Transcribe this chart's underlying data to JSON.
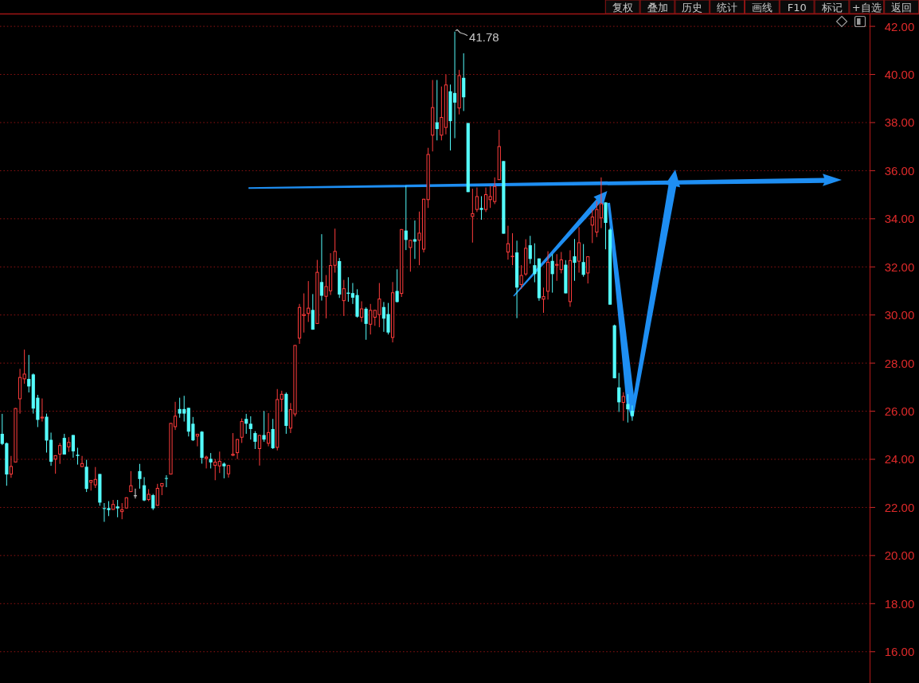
{
  "chart_data": {
    "type": "candlestick",
    "categories": [
      null,
      null,
      null,
      null,
      null,
      null,
      null,
      null,
      null,
      null,
      null,
      null,
      null,
      null,
      null,
      null,
      null,
      null,
      null,
      null,
      null,
      null,
      null,
      null,
      null,
      null,
      null,
      null,
      null,
      null,
      null,
      null,
      null,
      null,
      null,
      null,
      null,
      null,
      null,
      null,
      null,
      null,
      null,
      null,
      null,
      null,
      null,
      null,
      null,
      null,
      null,
      null,
      null,
      null,
      null,
      null,
      null,
      null,
      null,
      null,
      null,
      null,
      null,
      null,
      null,
      null,
      null,
      null,
      null,
      null,
      null,
      null,
      null,
      null,
      null,
      null,
      null,
      null,
      null,
      null,
      null,
      null,
      null,
      null,
      null,
      null,
      null,
      null,
      null,
      null,
      null,
      null,
      null,
      null,
      null,
      null,
      null,
      null,
      null,
      null,
      null,
      null,
      null,
      null,
      null,
      null,
      null,
      null,
      null,
      null,
      null,
      null,
      null,
      null,
      null,
      null,
      null,
      null,
      null,
      null,
      null,
      null,
      null,
      null,
      null,
      null,
      null,
      null,
      null,
      null,
      null,
      null,
      null,
      null,
      null,
      null,
      null,
      null,
      null,
      null,
      null,
      null,
      null,
      null,
      null,
      null,
      null,
      null,
      null,
      null,
      null,
      null,
      null,
      null,
      null,
      null,
      null,
      null,
      null,
      null,
      null,
      null,
      null,
      null,
      null,
      null,
      null,
      null,
      null,
      null,
      null,
      null,
      null,
      null,
      null,
      null,
      null,
      null,
      null,
      null,
      null,
      null,
      null,
      null,
      null,
      null,
      null,
      null,
      null,
      null,
      null,
      null,
      null,
      null,
      null,
      null
    ],
    "ohlc": [
      [
        25.06,
        25.89,
        24.59,
        24.64
      ],
      [
        24.67,
        24.7,
        22.9,
        23.37
      ],
      [
        23.37,
        24.14,
        23.23,
        23.72
      ],
      [
        23.87,
        26.13,
        23.87,
        26.13
      ],
      [
        26.5,
        27.76,
        25.9,
        27.42
      ],
      [
        27.33,
        28.56,
        27.14,
        27.56
      ],
      [
        27.34,
        28.34,
        26.78,
        27.03
      ],
      [
        27.53,
        27.57,
        25.9,
        26.11
      ],
      [
        26.56,
        26.68,
        25.34,
        25.64
      ],
      [
        25.7,
        26.53,
        25.57,
        25.77
      ],
      [
        25.77,
        25.9,
        24.28,
        24.78
      ],
      [
        24.81,
        25.11,
        23.73,
        23.9
      ],
      [
        23.99,
        24.17,
        23.4,
        24.17
      ],
      [
        24.2,
        24.68,
        23.81,
        24.59
      ],
      [
        24.89,
        25.06,
        24.2,
        24.2
      ],
      [
        24.5,
        24.92,
        24.31,
        24.72
      ],
      [
        25.01,
        25.01,
        24.07,
        24.33
      ],
      [
        24.19,
        24.48,
        23.78,
        24.14
      ],
      [
        23.68,
        24.14,
        23.68,
        23.84
      ],
      [
        23.69,
        23.98,
        22.64,
        22.77
      ],
      [
        23.03,
        23.14,
        22.7,
        23.14
      ],
      [
        22.92,
        23.68,
        22.81,
        23.18
      ],
      [
        23.39,
        23.39,
        22.07,
        22.2
      ],
      [
        21.97,
        22.18,
        21.4,
        21.94
      ],
      [
        21.97,
        22.26,
        21.64,
        21.89
      ],
      [
        21.9,
        22.31,
        21.9,
        22.14
      ],
      [
        22.04,
        22.31,
        21.59,
        21.96
      ],
      [
        21.81,
        22.18,
        21.51,
        21.92
      ],
      [
        21.96,
        22.42,
        21.96,
        22.42
      ],
      [
        22.64,
        23.51,
        22.64,
        22.92
      ],
      [
        22.5,
        22.78,
        22.37,
        22.5
      ],
      [
        23.51,
        23.81,
        22.78,
        23.18
      ],
      [
        22.92,
        23.26,
        22.26,
        22.29
      ],
      [
        22.31,
        22.76,
        22.26,
        22.56
      ],
      [
        22.51,
        22.56,
        21.89,
        21.96
      ],
      [
        22.07,
        22.98,
        22.07,
        22.81
      ],
      [
        22.87,
        23.01,
        22.51,
        23.01
      ],
      [
        23.22,
        23.34,
        22.84,
        23.19
      ],
      [
        23.37,
        25.51,
        23.37,
        25.51
      ],
      [
        25.34,
        26.39,
        25.22,
        25.81
      ],
      [
        26.09,
        26.56,
        25.73,
        25.9
      ],
      [
        26.09,
        26.64,
        25.57,
        25.9
      ],
      [
        26.14,
        26.14,
        24.95,
        25.15
      ],
      [
        25.48,
        25.76,
        24.76,
        24.79
      ],
      [
        24.95,
        25.06,
        24.54,
        25.06
      ],
      [
        25.15,
        25.17,
        23.82,
        24.06
      ],
      [
        24.02,
        24.15,
        23.62,
        24.11
      ],
      [
        24.02,
        24.26,
        23.62,
        23.87
      ],
      [
        23.73,
        24.01,
        23.13,
        23.9
      ],
      [
        23.71,
        24.32,
        23.43,
        23.93
      ],
      [
        23.82,
        23.87,
        23.21,
        23.71
      ],
      [
        23.38,
        23.76,
        23.24,
        23.76
      ],
      [
        24.15,
        25.09,
        24.13,
        24.23
      ],
      [
        24.26,
        24.84,
        24.01,
        24.84
      ],
      [
        24.9,
        25.7,
        24.68,
        25.59
      ],
      [
        25.68,
        25.89,
        25.06,
        25.48
      ],
      [
        25.48,
        25.79,
        24.82,
        25.26
      ],
      [
        25.09,
        25.17,
        24.43,
        24.73
      ],
      [
        24.43,
        25.01,
        23.74,
        25.01
      ],
      [
        25.01,
        26.01,
        24.73,
        24.82
      ],
      [
        24.65,
        25.92,
        24.54,
        25.13
      ],
      [
        25.26,
        25.68,
        24.43,
        24.46
      ],
      [
        24.48,
        26.92,
        24.37,
        26.5
      ],
      [
        26.48,
        26.85,
        25.98,
        26.72
      ],
      [
        26.72,
        26.78,
        25.06,
        25.39
      ],
      [
        25.28,
        26.34,
        25.09,
        26.08
      ],
      [
        25.87,
        28.75,
        25.78,
        28.75
      ],
      [
        29.02,
        30.46,
        28.8,
        30.33
      ],
      [
        29.96,
        30.9,
        29.27,
        30.04
      ],
      [
        30.05,
        31.41,
        29.71,
        30.3
      ],
      [
        30.21,
        30.87,
        29.39,
        29.39
      ],
      [
        29.63,
        32.29,
        29.63,
        31.79
      ],
      [
        31.37,
        33.36,
        30.6,
        30.8
      ],
      [
        30.76,
        31.66,
        29.86,
        31.2
      ],
      [
        30.99,
        32.57,
        30.83,
        32.07
      ],
      [
        32.05,
        33.59,
        31.76,
        32.66
      ],
      [
        32.24,
        32.37,
        30.71,
        30.85
      ],
      [
        30.58,
        31.46,
        29.96,
        31.11
      ],
      [
        30.93,
        31.57,
        30.55,
        30.88
      ],
      [
        30.91,
        31.33,
        30.46,
        30.72
      ],
      [
        30.83,
        31.07,
        29.89,
        29.93
      ],
      [
        29.89,
        30.57,
        29.71,
        30.27
      ],
      [
        30.26,
        30.32,
        28.97,
        29.63
      ],
      [
        29.6,
        30.46,
        29.19,
        30.21
      ],
      [
        29.89,
        30.21,
        29.55,
        30.21
      ],
      [
        30.0,
        31.33,
        29.49,
        30.68
      ],
      [
        30.33,
        30.54,
        29.3,
        29.85
      ],
      [
        30.04,
        30.5,
        29.19,
        29.27
      ],
      [
        29.05,
        31.37,
        28.86,
        30.94
      ],
      [
        31.0,
        31.9,
        30.52,
        30.54
      ],
      [
        30.88,
        33.57,
        30.75,
        33.57
      ],
      [
        33.51,
        35.36,
        32.7,
        33.12
      ],
      [
        32.79,
        33.12,
        31.8,
        33.12
      ],
      [
        33.15,
        33.93,
        32.33,
        33.05
      ],
      [
        33.09,
        34.3,
        32.07,
        33.42
      ],
      [
        32.72,
        34.83,
        32.6,
        34.83
      ],
      [
        34.78,
        36.95,
        34.45,
        36.69
      ],
      [
        37.46,
        39.77,
        36.8,
        38.64
      ],
      [
        38.01,
        39.77,
        37.26,
        37.73
      ],
      [
        37.46,
        39.5,
        37.26,
        38.23
      ],
      [
        37.78,
        40.0,
        37.51,
        39.58
      ],
      [
        39.3,
        39.58,
        36.84,
        38.06
      ],
      [
        39.23,
        41.78,
        37.35,
        38.83
      ],
      [
        38.59,
        40.19,
        38.34,
        39.97
      ],
      [
        39.86,
        40.88,
        38.48,
        39.05
      ],
      [
        37.98,
        37.98,
        35.11,
        35.11
      ],
      [
        34.08,
        35.25,
        33.01,
        34.23
      ],
      [
        34.37,
        35.3,
        34.28,
        34.94
      ],
      [
        34.45,
        34.94,
        33.96,
        34.37
      ],
      [
        34.37,
        35.3,
        34.28,
        35.02
      ],
      [
        34.78,
        35.36,
        34.45,
        34.94
      ],
      [
        34.7,
        35.72,
        34.61,
        35.36
      ],
      [
        35.61,
        37.7,
        35.61,
        37.02
      ],
      [
        36.4,
        36.4,
        33.38,
        33.38
      ],
      [
        32.6,
        33.71,
        32.3,
        32.98
      ],
      [
        32.41,
        33.4,
        32.07,
        32.46
      ],
      [
        32.6,
        33.09,
        29.87,
        31.14
      ],
      [
        31.25,
        32.07,
        31.08,
        31.66
      ],
      [
        31.69,
        33.15,
        31.63,
        32.79
      ],
      [
        32.9,
        33.29,
        32.13,
        32.33
      ],
      [
        32.07,
        32.98,
        31.36,
        31.7
      ],
      [
        32.35,
        32.35,
        30.59,
        30.7
      ],
      [
        30.64,
        31.14,
        30.09,
        30.78
      ],
      [
        30.97,
        32.65,
        30.64,
        32.21
      ],
      [
        32.25,
        32.53,
        30.93,
        31.7
      ],
      [
        32.05,
        32.53,
        31.42,
        32.12
      ],
      [
        31.87,
        32.62,
        31.73,
        32.31
      ],
      [
        32.09,
        32.28,
        30.9,
        30.9
      ],
      [
        30.54,
        32.69,
        30.34,
        32.28
      ],
      [
        32.44,
        33.16,
        31.42,
        32.17
      ],
      [
        32.22,
        33.65,
        31.76,
        33.02
      ],
      [
        32.2,
        32.95,
        31.59,
        31.67
      ],
      [
        31.73,
        32.44,
        31.31,
        32.44
      ],
      [
        33.72,
        34.4,
        32.99,
        34.09
      ],
      [
        33.43,
        34.73,
        33.24,
        34.4
      ],
      [
        34.02,
        35.72,
        33.61,
        34.64
      ],
      [
        34.68,
        34.68,
        32.73,
        33.83
      ],
      [
        33.55,
        33.61,
        30.43,
        30.43
      ],
      [
        29.57,
        29.6,
        27.37,
        27.37
      ],
      [
        26.99,
        27.59,
        25.97,
        26.37
      ],
      [
        26.35,
        26.79,
        25.6,
        26.63
      ],
      [
        26.3,
        26.71,
        25.53,
        26.08
      ],
      [
        26.02,
        26.24,
        25.6,
        25.8
      ],
      null,
      null,
      null,
      null,
      null,
      null,
      null,
      null,
      null,
      null,
      null,
      null,
      null,
      null,
      null,
      null,
      null,
      null,
      null,
      null,
      null,
      null,
      null,
      null,
      null,
      null,
      null,
      null,
      null,
      null,
      null,
      null,
      null,
      null,
      null,
      null,
      null,
      null,
      null,
      null,
      null,
      null,
      null,
      null,
      null,
      null,
      null,
      null,
      null,
      null,
      null,
      null,
      null
    ],
    "colors": [
      "#54fcfc",
      "#54fcfc",
      "#ff3c3c",
      "#ff3c3c",
      "#ff3c3c",
      "#ff3c3c",
      "#54fcfc",
      "#54fcfc",
      "#54fcfc",
      "#ff3c3c",
      "#54fcfc",
      "#54fcfc",
      "#ff3c3c",
      "#ff3c3c",
      "#54fcfc",
      "#ff3c3c",
      "#54fcfc",
      "#54fcfc",
      "#ff3c3c",
      "#54fcfc",
      "#ff3c3c",
      "#ff3c3c",
      "#54fcfc",
      "#54fcfc",
      "#54fcfc",
      "#ff3c3c",
      "#54fcfc",
      "#ff3c3c",
      "#ff3c3c",
      "#ff3c3c",
      "#e8e8e8",
      "#54fcfc",
      "#54fcfc",
      "#ff3c3c",
      "#54fcfc",
      "#ff3c3c",
      "#ff3c3c",
      "#54fcfc",
      "#ff3c3c",
      "#ff3c3c",
      "#54fcfc",
      "#54fcfc",
      "#54fcfc",
      "#54fcfc",
      "#ff3c3c",
      "#54fcfc",
      "#ff3c3c",
      "#54fcfc",
      "#ff3c3c",
      "#ff3c3c",
      "#54fcfc",
      "#ff3c3c",
      "#ff3c3c",
      "#ff3c3c",
      "#ff3c3c",
      "#54fcfc",
      "#54fcfc",
      "#54fcfc",
      "#ff3c3c",
      "#54fcfc",
      "#ff3c3c",
      "#54fcfc",
      "#ff3c3c",
      "#ff3c3c",
      "#54fcfc",
      "#ff3c3c",
      "#ff3c3c",
      "#ff3c3c",
      "#ff3c3c",
      "#ff3c3c",
      "#54fcfc",
      "#ff3c3c",
      "#54fcfc",
      "#ff3c3c",
      "#ff3c3c",
      "#ff3c3c",
      "#54fcfc",
      "#ff3c3c",
      "#54fcfc",
      "#54fcfc",
      "#54fcfc",
      "#ff3c3c",
      "#54fcfc",
      "#ff3c3c",
      "#ff3c3c",
      "#ff3c3c",
      "#54fcfc",
      "#54fcfc",
      "#ff3c3c",
      "#54fcfc",
      "#ff3c3c",
      "#54fcfc",
      "#ff3c3c",
      "#54fcfc",
      "#ff3c3c",
      "#ff3c3c",
      "#ff3c3c",
      "#ff3c3c",
      "#54fcfc",
      "#ff3c3c",
      "#ff3c3c",
      "#54fcfc",
      "#54fcfc",
      "#ff3c3c",
      "#54fcfc",
      "#54fcfc",
      "#ff3c3c",
      "#ff3c3c",
      "#54fcfc",
      "#ff3c3c",
      "#ff3c3c",
      "#ff3c3c",
      "#ff3c3c",
      "#54fcfc",
      "#ff3c3c",
      "#ff3c3c",
      "#54fcfc",
      "#ff3c3c",
      "#ff3c3c",
      "#54fcfc",
      "#54fcfc",
      "#54fcfc",
      "#ff3c3c",
      "#ff3c3c",
      "#54fcfc",
      "#ff3c3c",
      "#ff3c3c",
      "#54fcfc",
      "#ff3c3c",
      "#54fcfc",
      "#ff3c3c",
      "#54fcfc",
      "#ff3c3c",
      "#ff3c3c",
      "#ff3c3c",
      "#ff3c3c",
      "#54fcfc",
      "#54fcfc",
      "#54fcfc",
      "#54fcfc",
      "#ff3c3c",
      "#54fcfc",
      "#54fcfc",
      null,
      null,
      null,
      null,
      null,
      null,
      null,
      null,
      null,
      null,
      null,
      null,
      null,
      null,
      null,
      null,
      null,
      null,
      null,
      null,
      null,
      null,
      null,
      null,
      null,
      null,
      null,
      null,
      null,
      null,
      null,
      null,
      null,
      null,
      null,
      null,
      null,
      null,
      null,
      null,
      null,
      null,
      null,
      null,
      null,
      null,
      null,
      null,
      null,
      null,
      null,
      null,
      null
    ],
    "ylim": [
      14.7,
      42.5
    ],
    "yticks": [
      {
        "value": 16,
        "label": "16.00"
      },
      {
        "value": 18,
        "label": "18.00"
      },
      {
        "value": 20,
        "label": "20.00"
      },
      {
        "value": 22,
        "label": "22.00"
      },
      {
        "value": 24,
        "label": "24.00"
      },
      {
        "value": 26,
        "label": "26.00"
      },
      {
        "value": 28,
        "label": "28.00"
      },
      {
        "value": 30,
        "label": "30.00"
      },
      {
        "value": 32,
        "label": "32.00"
      },
      {
        "value": 34,
        "label": "34.00"
      },
      {
        "value": 36,
        "label": "36.00"
      },
      {
        "value": 38,
        "label": "38.00"
      },
      {
        "value": 40,
        "label": "40.00"
      },
      {
        "value": 42,
        "label": "42.00"
      }
    ],
    "grid": "y",
    "tick_labels": "y",
    "annotations": [
      "复权",
      "叠加",
      "历史",
      "统计",
      "画线",
      "F10",
      "标记",
      "+自选",
      "返回",
      "41.78"
    ]
  }
}
